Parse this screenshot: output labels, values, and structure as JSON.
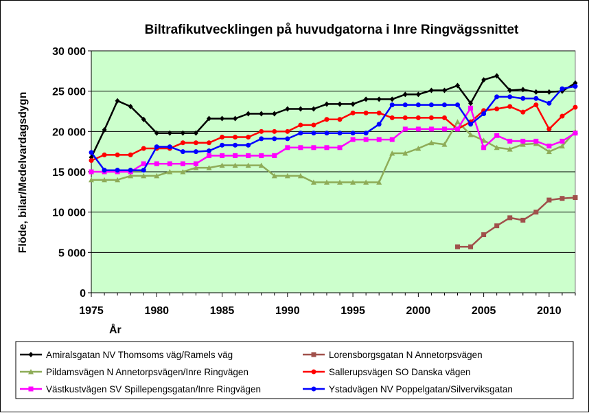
{
  "chart_data": {
    "type": "line",
    "title": "Biltrafikutvecklingen på huvudgatorna i Inre Ringvägssnittet",
    "xlabel": "År",
    "ylabel": "Flöde, bilar/Medelvardagsdygn",
    "xlim": [
      1975,
      2012
    ],
    "ylim": [
      0,
      30000
    ],
    "x_ticks": [
      "1975",
      "1980",
      "1985",
      "1990",
      "1995",
      "2000",
      "2005",
      "2010"
    ],
    "x_tick_values": [
      1975,
      1980,
      1985,
      1990,
      1995,
      2000,
      2005,
      2010
    ],
    "y_ticks": [
      "0",
      "5 000",
      "10 000",
      "15 000",
      "20 000",
      "25 000",
      "30 000"
    ],
    "y_tick_values": [
      0,
      5000,
      10000,
      15000,
      20000,
      25000,
      30000
    ],
    "grid": "horizontal",
    "legend": "bottom",
    "plot_background": "#ccffcc",
    "series": [
      {
        "name": "Amiralsgatan NV Thomsoms väg/Ramels väg",
        "color": "#000000",
        "marker": "diamond",
        "x": [
          1975,
          1976,
          1977,
          1978,
          1979,
          1980,
          1981,
          1982,
          1983,
          1984,
          1985,
          1986,
          1987,
          1988,
          1989,
          1990,
          1991,
          1992,
          1993,
          1994,
          1995,
          1996,
          1997,
          1998,
          1999,
          2000,
          2001,
          2002,
          2003,
          2004,
          2005,
          2006,
          2007,
          2008,
          2009,
          2010,
          2011,
          2012
        ],
        "y": [
          16800,
          20200,
          23800,
          23100,
          21500,
          19800,
          19800,
          19800,
          19800,
          21600,
          21600,
          21600,
          22200,
          22200,
          22200,
          22800,
          22800,
          22800,
          23400,
          23400,
          23400,
          24000,
          24000,
          24000,
          24600,
          24600,
          25100,
          25100,
          25700,
          23500,
          26400,
          26900,
          25100,
          25200,
          24900,
          24900,
          25000,
          26000
        ]
      },
      {
        "name": "Lorensborgsgatan N Annetorpsvägen",
        "color": "#a0504b",
        "marker": "square",
        "x": [
          2003,
          2004,
          2005,
          2006,
          2007,
          2008,
          2009,
          2010,
          2011,
          2012
        ],
        "y": [
          5700,
          5700,
          7200,
          8300,
          9300,
          9000,
          10000,
          11500,
          11700,
          11800
        ]
      },
      {
        "name": "Pildamsvägen N Annetorpsvägen/Inre Ringvägen",
        "color": "#8eac58",
        "marker": "triangle",
        "x": [
          1975,
          1976,
          1977,
          1978,
          1979,
          1980,
          1981,
          1982,
          1983,
          1984,
          1985,
          1986,
          1987,
          1988,
          1989,
          1990,
          1991,
          1992,
          1993,
          1994,
          1995,
          1996,
          1997,
          1998,
          1999,
          2000,
          2001,
          2002,
          2003,
          2004,
          2005,
          2006,
          2007,
          2008,
          2009,
          2010,
          2011,
          2012
        ],
        "y": [
          14000,
          14000,
          14000,
          14500,
          14500,
          14500,
          15000,
          15000,
          15500,
          15500,
          15800,
          15800,
          15800,
          15800,
          14500,
          14500,
          14500,
          13700,
          13700,
          13700,
          13700,
          13700,
          13700,
          17300,
          17300,
          17900,
          18600,
          18400,
          21200,
          19600,
          18900,
          18000,
          17800,
          18400,
          18500,
          17500,
          18200,
          20000
        ]
      },
      {
        "name": "Sallerupsvägen SO Danska vägen",
        "color": "#ff0000",
        "marker": "circle",
        "x": [
          1975,
          1976,
          1977,
          1978,
          1979,
          1980,
          1981,
          1982,
          1983,
          1984,
          1985,
          1986,
          1987,
          1988,
          1989,
          1990,
          1991,
          1992,
          1993,
          1994,
          1995,
          1996,
          1997,
          1998,
          1999,
          2000,
          2001,
          2002,
          2003,
          2004,
          2005,
          2006,
          2007,
          2008,
          2009,
          2010,
          2011,
          2012
        ],
        "y": [
          16400,
          17100,
          17100,
          17100,
          17900,
          17900,
          17900,
          18600,
          18600,
          18600,
          19300,
          19300,
          19300,
          20000,
          20000,
          20000,
          20800,
          20800,
          21500,
          21500,
          22300,
          22300,
          22300,
          21700,
          21700,
          21700,
          21700,
          21700,
          20300,
          21200,
          22600,
          22800,
          23100,
          22400,
          23300,
          20300,
          21900,
          23000
        ]
      },
      {
        "name": "Västkustvägen SV Spillepengsgatan/Inre Ringvägen",
        "color": "#ff00ff",
        "marker": "square",
        "x": [
          1975,
          1976,
          1977,
          1978,
          1979,
          1980,
          1981,
          1982,
          1983,
          1984,
          1985,
          1986,
          1987,
          1988,
          1989,
          1990,
          1991,
          1992,
          1993,
          1994,
          1995,
          1996,
          1997,
          1998,
          1999,
          2000,
          2001,
          2002,
          2003,
          2004,
          2005,
          2006,
          2007,
          2008,
          2009,
          2010,
          2011,
          2012
        ],
        "y": [
          15000,
          15000,
          15000,
          15000,
          16000,
          16000,
          16000,
          16000,
          16000,
          17000,
          17000,
          17000,
          17000,
          17000,
          17000,
          18000,
          18000,
          18000,
          18000,
          18000,
          19000,
          19000,
          19000,
          19000,
          20300,
          20300,
          20300,
          20300,
          20300,
          22900,
          18000,
          19500,
          18800,
          18800,
          18800,
          18200,
          18800,
          19800
        ]
      },
      {
        "name": "Ystadvägen NV Poppelgatan/Silverviksgatan",
        "color": "#0000ff",
        "marker": "circle",
        "x": [
          1975,
          1976,
          1977,
          1978,
          1979,
          1980,
          1981,
          1982,
          1983,
          1984,
          1985,
          1986,
          1987,
          1988,
          1989,
          1990,
          1991,
          1992,
          1993,
          1994,
          1995,
          1996,
          1997,
          1998,
          1999,
          2000,
          2001,
          2002,
          2003,
          2004,
          2005,
          2006,
          2007,
          2008,
          2009,
          2010,
          2011,
          2012
        ],
        "y": [
          17400,
          15200,
          15200,
          15200,
          15200,
          18100,
          18100,
          17500,
          17500,
          17600,
          18300,
          18300,
          18300,
          19100,
          19100,
          19100,
          19800,
          19800,
          19800,
          19800,
          19800,
          19800,
          20900,
          23300,
          23300,
          23300,
          23300,
          23300,
          23300,
          20900,
          22200,
          24300,
          24300,
          24100,
          24100,
          23500,
          25300,
          25600
        ]
      }
    ]
  }
}
